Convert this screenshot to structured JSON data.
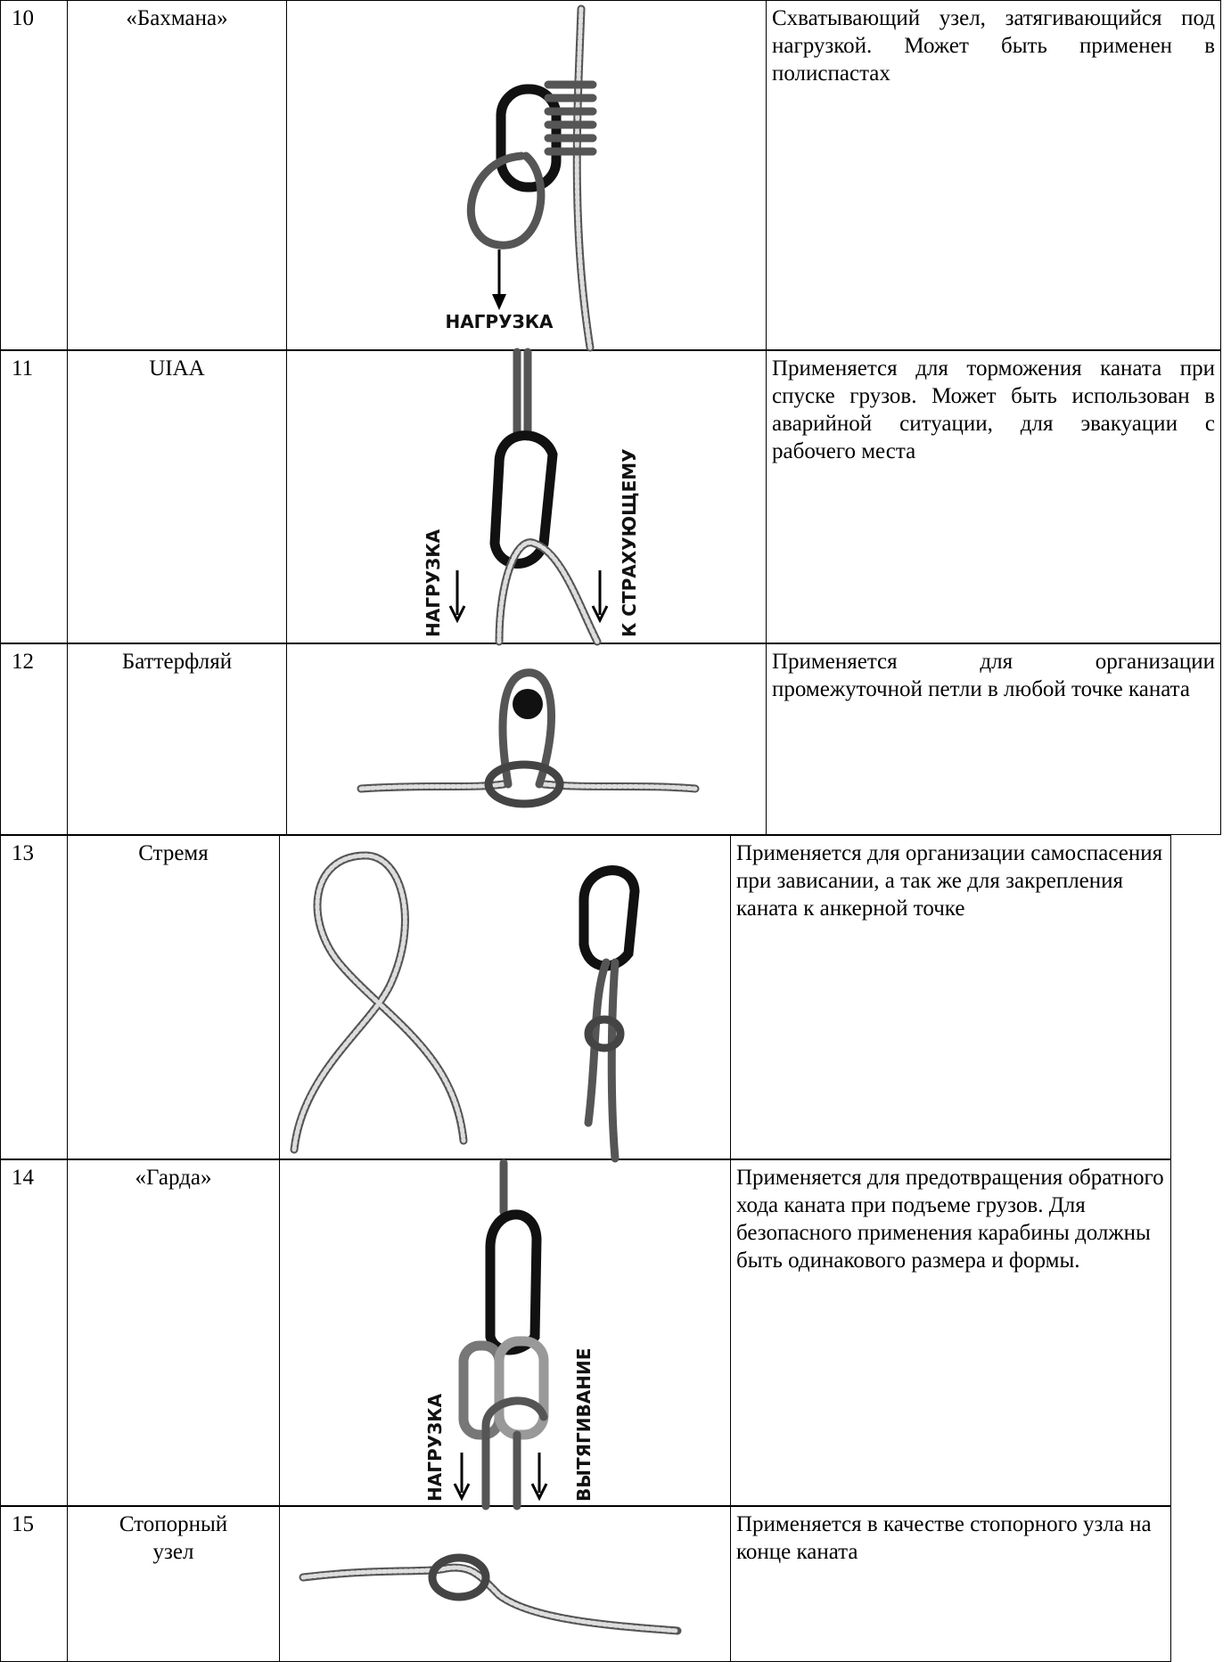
{
  "table": {
    "rows": [
      {
        "number": "10",
        "name": "«Бахмана»",
        "description": "Схватывающий узел, затягивающийся под нагрузкой. Может быть применен в полиспастах",
        "labels": [
          "НАГРУЗКА"
        ]
      },
      {
        "number": "11",
        "name": "UIAA",
        "description": "Применяется для торможения каната при спуске грузов. Может быть использован в аварийной ситуации, для эвакуации с рабочего места",
        "labels": [
          "НАГРУЗКА",
          "К СТРАХУЮЩЕМУ"
        ]
      },
      {
        "number": "12",
        "name": "Баттерфляй",
        "description": "Применяется для организации промежуточной петли в любой точке каната"
      },
      {
        "number": "13",
        "name": "Стремя",
        "description": "Применяется для организации самоспасения при зависании, а так же для закрепления каната к анкерной точке"
      },
      {
        "number": "14",
        "name": "«Гарда»",
        "description": "Применяется для предотвращения обратного хода каната при подъеме грузов. Для безопасного применения карабины должны быть одинакового размера и формы.",
        "labels": [
          "НАГРУЗКА",
          "ВЫТЯГИВАНИЕ"
        ]
      },
      {
        "number": "15",
        "name": "Стопорный узел",
        "description": "Применяется в качестве стопорного узла на конце каната"
      }
    ]
  }
}
